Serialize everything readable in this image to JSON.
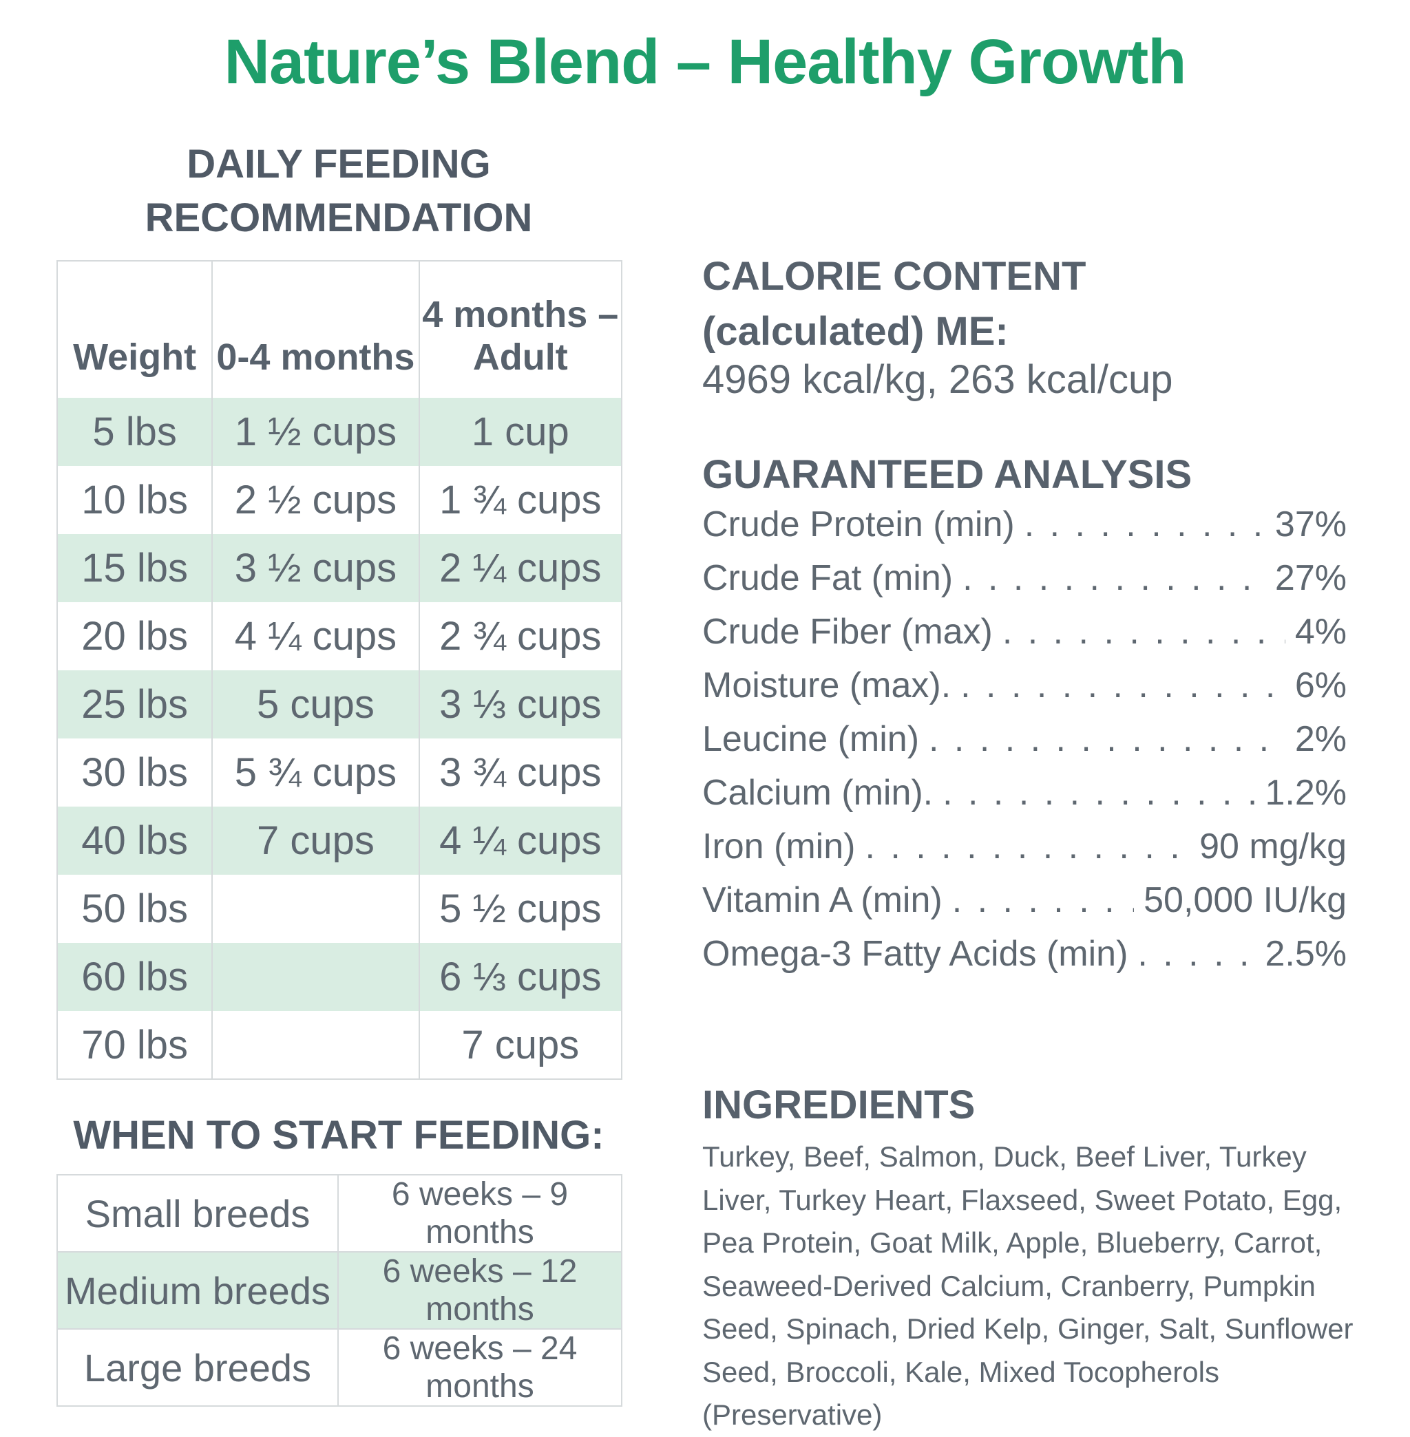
{
  "title": "Nature’s Blend – Healthy Growth",
  "feeding": {
    "heading_line1": "DAILY FEEDING",
    "heading_line2": "RECOMMENDATION",
    "headers": [
      "Weight",
      "0-4 months",
      "4 months – Adult"
    ],
    "rows": [
      [
        "5 lbs",
        "1 ½ cups",
        "1  cup"
      ],
      [
        "10 lbs",
        "2 ½ cups",
        "1 ¾ cups"
      ],
      [
        "15 lbs",
        "3 ½ cups",
        "2 ¼ cups"
      ],
      [
        "20 lbs",
        "4 ¼ cups",
        "2 ¾ cups"
      ],
      [
        "25 lbs",
        "5 cups",
        "3 ⅓ cups"
      ],
      [
        "30 lbs",
        "5 ¾ cups",
        "3 ¾ cups"
      ],
      [
        "40 lbs",
        "7 cups",
        "4 ¼ cups"
      ],
      [
        "50 lbs",
        "",
        "5 ½ cups"
      ],
      [
        "60 lbs",
        "",
        "6 ⅓ cups"
      ],
      [
        "70 lbs",
        "",
        "7 cups"
      ]
    ]
  },
  "start": {
    "heading": "WHEN TO START FEEDING:",
    "rows": [
      [
        "Small breeds",
        "6 weeks – 9 months"
      ],
      [
        "Medium breeds",
        "6 weeks – 12 months"
      ],
      [
        "Large breeds",
        "6 weeks – 24 months"
      ]
    ]
  },
  "calorie": {
    "heading_line1": "CALORIE CONTENT",
    "heading_line2": "(calculated) ME:",
    "value": "4969 kcal/kg, 263 kcal/cup"
  },
  "analysis": {
    "heading": "GUARANTEED ANALYSIS",
    "items": [
      {
        "name": "Crude Protein (min)",
        "value": "37%"
      },
      {
        "name": "Crude Fat (min)",
        "value": "27%"
      },
      {
        "name": "Crude Fiber (max)",
        "value": "4%"
      },
      {
        "name": "Moisture (max).",
        "value": "6%"
      },
      {
        "name": "Leucine (min)",
        "value": "2%"
      },
      {
        "name": "Calcium (min).",
        "value": "1.2%"
      },
      {
        "name": "Iron (min)",
        "value": "90 mg/kg"
      },
      {
        "name": "Vitamin A (min)",
        "value": "50,000 IU/kg"
      },
      {
        "name": "Omega-3 Fatty Acids (min)",
        "value": "2.5%"
      }
    ]
  },
  "ingredients": {
    "heading": "INGREDIENTS",
    "text": "Turkey, Beef, Salmon, Duck, Beef Liver, Turkey Liver, Turkey Heart, Flaxseed, Sweet Potato, Egg, Pea Protein, Goat Milk, Apple, Blueberry, Carrot, Seaweed-Derived Calcium, Cranberry, Pumpkin Seed, Spinach, Dried Kelp, Ginger, Salt, Sunflower Seed, Broccoli, Kale, Mixed Tocopherols (Preservative)"
  },
  "colors": {
    "title_green": "#1e9e6a",
    "row_shade": "#d9ede2",
    "heading_gray": "#57616c"
  }
}
